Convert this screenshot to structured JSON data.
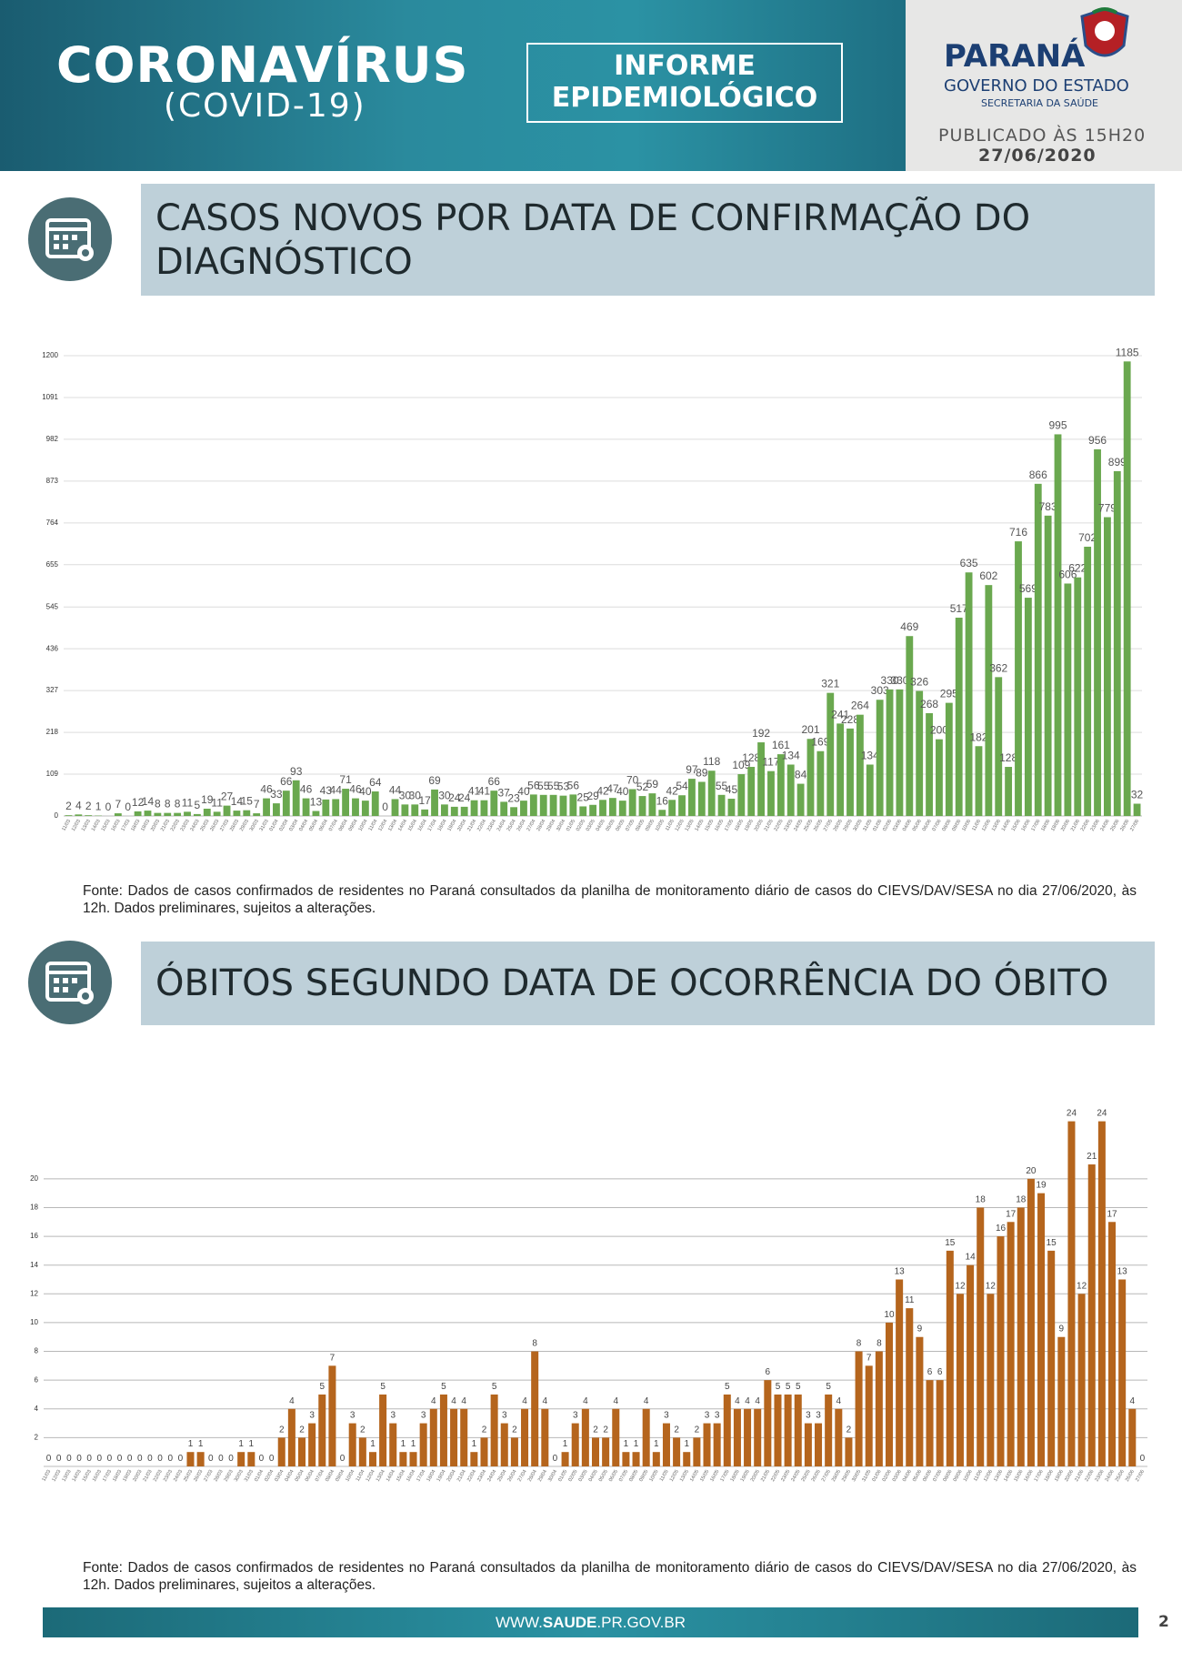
{
  "header": {
    "title": "CORONAVÍRUS",
    "subtitle": "(COVID-19)",
    "report_line1": "INFORME",
    "report_line2": "EPIDEMIOLÓGICO",
    "state": "PARANÁ",
    "government": "GOVERNO DO ESTADO",
    "department": "SECRETARIA DA SAÚDE",
    "published": "PUBLICADO ÀS 15H20",
    "date": "27/06/2020"
  },
  "sections": [
    {
      "title": "CASOS NOVOS POR DATA DE CONFIRMAÇÃO DO DIAGNÓSTICO",
      "source": "Fonte: Dados de casos confirmados de residentes no Paraná consultados da planilha de monitoramento diário de casos do CIEVS/DAV/SESA no dia 27/06/2020, às 12h. Dados preliminares, sujeitos a alterações."
    },
    {
      "title": "ÓBITOS SEGUNDO DATA DE OCORRÊNCIA DO ÓBITO",
      "source": "Fonte: Dados de casos confirmados de residentes no Paraná consultados da planilha de monitoramento diário de casos do CIEVS/DAV/SESA no dia 27/06/2020, às 12h. Dados preliminares, sujeitos a alterações."
    }
  ],
  "chart_data": [
    {
      "type": "bar",
      "categories": [
        "11/03",
        "12/03",
        "13/03",
        "14/03",
        "15/03",
        "16/03",
        "17/03",
        "18/03",
        "19/03",
        "20/03",
        "21/03",
        "22/03",
        "23/03",
        "24/03",
        "25/03",
        "26/03",
        "27/03",
        "28/03",
        "29/03",
        "30/03",
        "31/03",
        "01/04",
        "02/04",
        "03/04",
        "04/04",
        "05/04",
        "06/04",
        "07/04",
        "08/04",
        "09/04",
        "10/04",
        "11/04",
        "12/04",
        "13/04",
        "14/04",
        "15/04",
        "16/04",
        "17/04",
        "18/04",
        "19/04",
        "20/04",
        "21/04",
        "22/04",
        "23/04",
        "24/04",
        "25/04",
        "26/04",
        "27/04",
        "28/04",
        "29/04",
        "30/04",
        "01/05",
        "02/05",
        "03/05",
        "04/05",
        "05/05",
        "06/05",
        "07/05",
        "08/05",
        "09/05",
        "10/05",
        "11/05",
        "12/05",
        "13/05",
        "14/05",
        "15/05",
        "16/05",
        "17/05",
        "18/05",
        "19/05",
        "20/05",
        "21/05",
        "22/05",
        "23/05",
        "24/05",
        "25/05",
        "26/05",
        "27/05",
        "28/05",
        "29/05",
        "30/05",
        "31/05",
        "01/06",
        "02/06",
        "03/06",
        "04/06",
        "05/06",
        "06/06",
        "07/06",
        "08/06",
        "09/06",
        "10/06",
        "11/06",
        "12/06",
        "13/06",
        "14/06",
        "15/06",
        "16/06",
        "17/06",
        "18/06",
        "19/06",
        "20/06",
        "21/06",
        "22/06",
        "23/06",
        "24/06",
        "25/06",
        "26/06",
        "27/06"
      ],
      "values": [
        2,
        4,
        2,
        1,
        0,
        7,
        0,
        12,
        14,
        8,
        8,
        8,
        11,
        5,
        19,
        11,
        27,
        14,
        15,
        7,
        46,
        33,
        66,
        93,
        46,
        13,
        43,
        44,
        71,
        46,
        40,
        64,
        0,
        44,
        30,
        30,
        17,
        69,
        30,
        24,
        24,
        41,
        41,
        66,
        37,
        23,
        40,
        56,
        55,
        55,
        53,
        56,
        25,
        29,
        42,
        47,
        40,
        70,
        52,
        59,
        16,
        42,
        54,
        97,
        89,
        118,
        55,
        45,
        109,
        128,
        192,
        117,
        161,
        134,
        84,
        201,
        169,
        321,
        241,
        228,
        264,
        134,
        303,
        330,
        330,
        469,
        326,
        268,
        200,
        295,
        517,
        635,
        182,
        602,
        362,
        128,
        716,
        569,
        866,
        783,
        995,
        606,
        622,
        702,
        956,
        779,
        899,
        1185,
        32
      ],
      "color": "#6aa84f",
      "ylim": [
        0,
        1200
      ],
      "yticks": [
        0,
        109,
        218,
        327,
        436,
        545,
        655,
        764,
        873,
        982,
        1091,
        1200
      ],
      "grid": true
    },
    {
      "type": "bar",
      "categories": [
        "11/03",
        "12/03",
        "13/03",
        "14/03",
        "15/03",
        "16/03",
        "17/03",
        "18/03",
        "19/03",
        "20/03",
        "21/03",
        "22/03",
        "23/03",
        "24/03",
        "25/03",
        "26/03",
        "27/03",
        "28/03",
        "29/03",
        "30/03",
        "31/03",
        "01/04",
        "02/04",
        "03/04",
        "04/04",
        "05/04",
        "06/04",
        "07/04",
        "08/04",
        "09/04",
        "10/04",
        "11/04",
        "12/04",
        "13/04",
        "14/04",
        "15/04",
        "16/04",
        "17/04",
        "18/04",
        "19/04",
        "20/04",
        "21/04",
        "22/04",
        "23/04",
        "24/04",
        "25/04",
        "26/04",
        "27/04",
        "28/04",
        "29/04",
        "30/04",
        "01/05",
        "02/05",
        "03/05",
        "04/05",
        "05/05",
        "06/05",
        "07/05",
        "08/05",
        "09/05",
        "10/05",
        "11/05",
        "12/05",
        "13/05",
        "14/05",
        "15/05",
        "16/05",
        "17/05",
        "18/05",
        "19/05",
        "20/05",
        "21/05",
        "22/05",
        "23/05",
        "24/05",
        "25/05",
        "26/05",
        "27/05",
        "28/05",
        "29/05",
        "30/05",
        "31/05",
        "01/06",
        "02/06",
        "03/06",
        "04/06",
        "05/06",
        "06/06",
        "07/06",
        "08/06",
        "09/06",
        "10/06",
        "11/06",
        "12/06",
        "13/06",
        "14/06",
        "15/06",
        "16/06",
        "17/06",
        "18/06",
        "19/06",
        "20/06",
        "21/06",
        "22/06",
        "23/06",
        "24/06",
        "25/06",
        "26/06",
        "27/06"
      ],
      "values": [
        0,
        0,
        0,
        0,
        0,
        0,
        0,
        0,
        0,
        0,
        0,
        0,
        0,
        0,
        1,
        1,
        0,
        0,
        0,
        1,
        1,
        0,
        0,
        2,
        4,
        2,
        3,
        5,
        7,
        0,
        3,
        2,
        1,
        5,
        3,
        1,
        1,
        3,
        4,
        5,
        4,
        4,
        1,
        2,
        5,
        3,
        2,
        4,
        8,
        4,
        0,
        1,
        3,
        4,
        2,
        2,
        4,
        1,
        1,
        4,
        1,
        3,
        2,
        1,
        2,
        3,
        3,
        5,
        4,
        4,
        4,
        6,
        5,
        5,
        5,
        3,
        3,
        5,
        4,
        2,
        8,
        7,
        8,
        10,
        13,
        11,
        9,
        6,
        6,
        15,
        12,
        14,
        18,
        12,
        16,
        17,
        18,
        20,
        19,
        15,
        9,
        24,
        12,
        21,
        24,
        17,
        13,
        4,
        0
      ],
      "color": "#b5651d",
      "ylim": [
        0,
        26
      ],
      "yticks": [
        2,
        4,
        6,
        8,
        10,
        12,
        14,
        16,
        18,
        20
      ],
      "grid": true
    }
  ],
  "footer": {
    "url_prefix": "WWW.",
    "url_bold": "SAUDE",
    "url_suffix": ".PR.GOV.BR",
    "page": "2"
  }
}
